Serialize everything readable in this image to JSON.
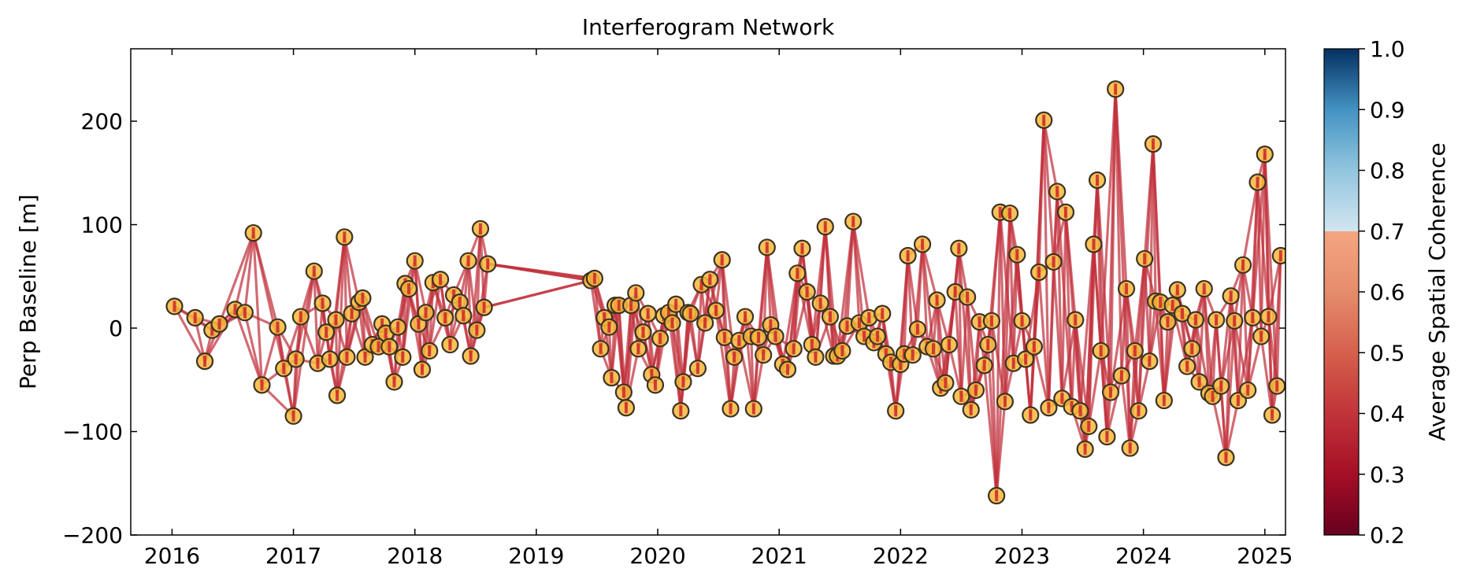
{
  "chart_data": {
    "type": "network",
    "title": "Interferogram Network",
    "xlabel": "",
    "ylabel": "Perp Baseline [m]",
    "xlim": [
      2015.66,
      2025.17
    ],
    "ylim": [
      -200,
      270
    ],
    "x_ticks": [
      2016,
      2017,
      2018,
      2019,
      2020,
      2021,
      2022,
      2023,
      2024,
      2025
    ],
    "y_ticks": [
      -200,
      -100,
      0,
      100,
      200
    ],
    "colorbar": {
      "label": "Average Spatial Coherence",
      "range": [
        0.2,
        1.0
      ],
      "ticks": [
        0.2,
        0.3,
        0.4,
        0.5,
        0.6,
        0.7,
        0.8,
        0.9,
        1.0
      ],
      "colormap": "RdBu",
      "masked_above": 0.7
    },
    "colors": {
      "edge": "#c0303c",
      "node_fill": "#f6b93b",
      "node_edge": "#3d3222",
      "node_center": "#c81e2a"
    },
    "acquisitions": [
      [
        2016.02,
        21
      ],
      [
        2016.19,
        10
      ],
      [
        2016.27,
        -32
      ],
      [
        2016.33,
        -2
      ],
      [
        2016.39,
        4
      ],
      [
        2016.52,
        18
      ],
      [
        2016.6,
        15
      ],
      [
        2016.67,
        92
      ],
      [
        2016.74,
        -55
      ],
      [
        2016.87,
        1
      ],
      [
        2016.92,
        -39
      ],
      [
        2017.0,
        -85
      ],
      [
        2017.02,
        -30
      ],
      [
        2017.06,
        11
      ],
      [
        2017.17,
        55
      ],
      [
        2017.2,
        -34
      ],
      [
        2017.24,
        24
      ],
      [
        2017.27,
        -4
      ],
      [
        2017.3,
        -30
      ],
      [
        2017.35,
        8
      ],
      [
        2017.36,
        -65
      ],
      [
        2017.42,
        88
      ],
      [
        2017.44,
        -28
      ],
      [
        2017.48,
        14
      ],
      [
        2017.54,
        25
      ],
      [
        2017.57,
        29
      ],
      [
        2017.59,
        -28
      ],
      [
        2017.65,
        -16
      ],
      [
        2017.7,
        -18
      ],
      [
        2017.73,
        4
      ],
      [
        2017.76,
        -5
      ],
      [
        2017.79,
        -18
      ],
      [
        2017.83,
        -52
      ],
      [
        2017.86,
        1
      ],
      [
        2017.9,
        -28
      ],
      [
        2017.92,
        43
      ],
      [
        2017.95,
        38
      ],
      [
        2018.0,
        65
      ],
      [
        2018.03,
        4
      ],
      [
        2018.06,
        -40
      ],
      [
        2018.09,
        15
      ],
      [
        2018.12,
        -22
      ],
      [
        2018.15,
        44
      ],
      [
        2018.21,
        47
      ],
      [
        2018.25,
        10
      ],
      [
        2018.29,
        -16
      ],
      [
        2018.32,
        32
      ],
      [
        2018.37,
        25
      ],
      [
        2018.4,
        12
      ],
      [
        2018.44,
        65
      ],
      [
        2018.46,
        -27
      ],
      [
        2018.51,
        -2
      ],
      [
        2018.54,
        96
      ],
      [
        2018.57,
        20
      ],
      [
        2018.6,
        62
      ],
      [
        2019.45,
        46
      ],
      [
        2019.48,
        48
      ],
      [
        2019.53,
        -20
      ],
      [
        2019.56,
        10
      ],
      [
        2019.6,
        1
      ],
      [
        2019.62,
        -48
      ],
      [
        2019.65,
        22
      ],
      [
        2019.68,
        22
      ],
      [
        2019.72,
        -62
      ],
      [
        2019.74,
        -77
      ],
      [
        2019.78,
        22
      ],
      [
        2019.82,
        34
      ],
      [
        2019.84,
        -20
      ],
      [
        2019.88,
        -4
      ],
      [
        2019.92,
        14
      ],
      [
        2019.95,
        -45
      ],
      [
        2019.98,
        -55
      ],
      [
        2020.02,
        -10
      ],
      [
        2020.05,
        12
      ],
      [
        2020.09,
        15
      ],
      [
        2020.12,
        5
      ],
      [
        2020.15,
        23
      ],
      [
        2020.19,
        -80
      ],
      [
        2020.21,
        -52
      ],
      [
        2020.25,
        15
      ],
      [
        2020.27,
        14
      ],
      [
        2020.33,
        -39
      ],
      [
        2020.36,
        42
      ],
      [
        2020.39,
        5
      ],
      [
        2020.43,
        47
      ],
      [
        2020.48,
        17
      ],
      [
        2020.53,
        66
      ],
      [
        2020.55,
        -9
      ],
      [
        2020.6,
        -78
      ],
      [
        2020.63,
        -28
      ],
      [
        2020.67,
        -12
      ],
      [
        2020.72,
        11
      ],
      [
        2020.77,
        -8
      ],
      [
        2020.79,
        -78
      ],
      [
        2020.83,
        -9
      ],
      [
        2020.87,
        -26
      ],
      [
        2020.9,
        78
      ],
      [
        2020.93,
        3
      ],
      [
        2020.97,
        -8
      ],
      [
        2021.03,
        -35
      ],
      [
        2021.07,
        -40
      ],
      [
        2021.12,
        -20
      ],
      [
        2021.15,
        53
      ],
      [
        2021.19,
        77
      ],
      [
        2021.23,
        35
      ],
      [
        2021.27,
        -16
      ],
      [
        2021.3,
        -28
      ],
      [
        2021.34,
        24
      ],
      [
        2021.38,
        98
      ],
      [
        2021.42,
        11
      ],
      [
        2021.45,
        -27
      ],
      [
        2021.48,
        -27
      ],
      [
        2021.52,
        -22
      ],
      [
        2021.56,
        2
      ],
      [
        2021.61,
        103
      ],
      [
        2021.66,
        5
      ],
      [
        2021.7,
        -8
      ],
      [
        2021.74,
        10
      ],
      [
        2021.78,
        -14
      ],
      [
        2021.81,
        -8
      ],
      [
        2021.85,
        14
      ],
      [
        2021.88,
        -25
      ],
      [
        2021.92,
        -33
      ],
      [
        2021.96,
        -80
      ],
      [
        2022.0,
        -35
      ],
      [
        2022.03,
        -25
      ],
      [
        2022.06,
        70
      ],
      [
        2022.1,
        -26
      ],
      [
        2022.14,
        -1
      ],
      [
        2022.18,
        81
      ],
      [
        2022.22,
        -18
      ],
      [
        2022.27,
        -20
      ],
      [
        2022.3,
        27
      ],
      [
        2022.33,
        -58
      ],
      [
        2022.37,
        -53
      ],
      [
        2022.4,
        -16
      ],
      [
        2022.45,
        35
      ],
      [
        2022.48,
        77
      ],
      [
        2022.5,
        -66
      ],
      [
        2022.55,
        30
      ],
      [
        2022.58,
        -79
      ],
      [
        2022.62,
        -60
      ],
      [
        2022.65,
        6
      ],
      [
        2022.69,
        -36
      ],
      [
        2022.72,
        -16
      ],
      [
        2022.75,
        7
      ],
      [
        2022.79,
        -162
      ],
      [
        2022.82,
        112
      ],
      [
        2022.86,
        -71
      ],
      [
        2022.9,
        111
      ],
      [
        2022.93,
        -34
      ],
      [
        2022.96,
        71
      ],
      [
        2023.0,
        7
      ],
      [
        2023.03,
        -30
      ],
      [
        2023.07,
        -84
      ],
      [
        2023.1,
        -18
      ],
      [
        2023.14,
        54
      ],
      [
        2023.18,
        201
      ],
      [
        2023.22,
        -77
      ],
      [
        2023.26,
        64
      ],
      [
        2023.29,
        132
      ],
      [
        2023.33,
        -68
      ],
      [
        2023.36,
        112
      ],
      [
        2023.41,
        -76
      ],
      [
        2023.44,
        8
      ],
      [
        2023.48,
        -80
      ],
      [
        2023.52,
        -117
      ],
      [
        2023.55,
        -95
      ],
      [
        2023.59,
        81
      ],
      [
        2023.62,
        143
      ],
      [
        2023.65,
        -22
      ],
      [
        2023.7,
        -105
      ],
      [
        2023.73,
        -62
      ],
      [
        2023.77,
        231
      ],
      [
        2023.82,
        -46
      ],
      [
        2023.86,
        38
      ],
      [
        2023.89,
        -116
      ],
      [
        2023.93,
        -22
      ],
      [
        2023.96,
        -80
      ],
      [
        2024.01,
        67
      ],
      [
        2024.05,
        -32
      ],
      [
        2024.08,
        178
      ],
      [
        2024.1,
        26
      ],
      [
        2024.14,
        25
      ],
      [
        2024.17,
        -70
      ],
      [
        2024.2,
        6
      ],
      [
        2024.24,
        22
      ],
      [
        2024.28,
        37
      ],
      [
        2024.32,
        14
      ],
      [
        2024.36,
        -37
      ],
      [
        2024.4,
        -20
      ],
      [
        2024.43,
        8
      ],
      [
        2024.46,
        -52
      ],
      [
        2024.5,
        38
      ],
      [
        2024.54,
        -63
      ],
      [
        2024.57,
        -66
      ],
      [
        2024.6,
        8
      ],
      [
        2024.64,
        -56
      ],
      [
        2024.68,
        -125
      ],
      [
        2024.72,
        31
      ],
      [
        2024.75,
        7
      ],
      [
        2024.78,
        -70
      ],
      [
        2024.82,
        61
      ],
      [
        2024.86,
        -60
      ],
      [
        2024.9,
        10
      ],
      [
        2024.94,
        141
      ],
      [
        2024.97,
        -8
      ],
      [
        2025.0,
        168
      ],
      [
        2025.03,
        11
      ],
      [
        2025.06,
        -84
      ],
      [
        2025.1,
        -56
      ],
      [
        2025.13,
        70
      ]
    ]
  }
}
